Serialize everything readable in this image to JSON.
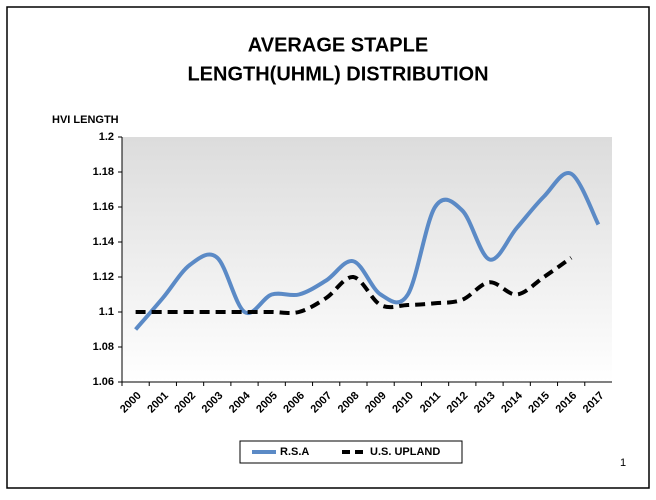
{
  "chart_data": {
    "type": "line",
    "title": [
      "AVERAGE STAPLE",
      "LENGTH(UHML) DISTRIBUTION"
    ],
    "y_label": "HVI LENGTH",
    "categories": [
      "2000",
      "2001",
      "2002",
      "2003",
      "2004",
      "2005",
      "2006",
      "2007",
      "2008",
      "2009",
      "2010",
      "2011",
      "2012",
      "2013",
      "2014",
      "2015",
      "2016",
      "2017"
    ],
    "series": [
      {
        "name": "R.S.A",
        "color": "#5b8ac6",
        "dash": "solid",
        "smooth": true,
        "values": [
          1.09,
          1.108,
          1.127,
          1.131,
          1.1,
          1.11,
          1.11,
          1.118,
          1.129,
          1.11,
          1.11,
          1.16,
          1.158,
          1.13,
          1.148,
          1.166,
          1.179,
          1.15
        ]
      },
      {
        "name": "U.S. UPLAND",
        "color": "#000000",
        "dash": "dashed",
        "smooth": true,
        "values": [
          1.1,
          1.1,
          1.1,
          1.1,
          1.1,
          1.1,
          1.1,
          1.108,
          1.12,
          1.104,
          1.104,
          1.105,
          1.107,
          1.117,
          1.11,
          1.12,
          1.131,
          null
        ]
      }
    ],
    "ylim": [
      1.06,
      1.2
    ],
    "yticks": [
      1.06,
      1.08,
      1.1,
      1.12,
      1.14,
      1.16,
      1.18,
      1.2
    ],
    "grid": false,
    "legend": "bottom"
  },
  "page_number": "1"
}
